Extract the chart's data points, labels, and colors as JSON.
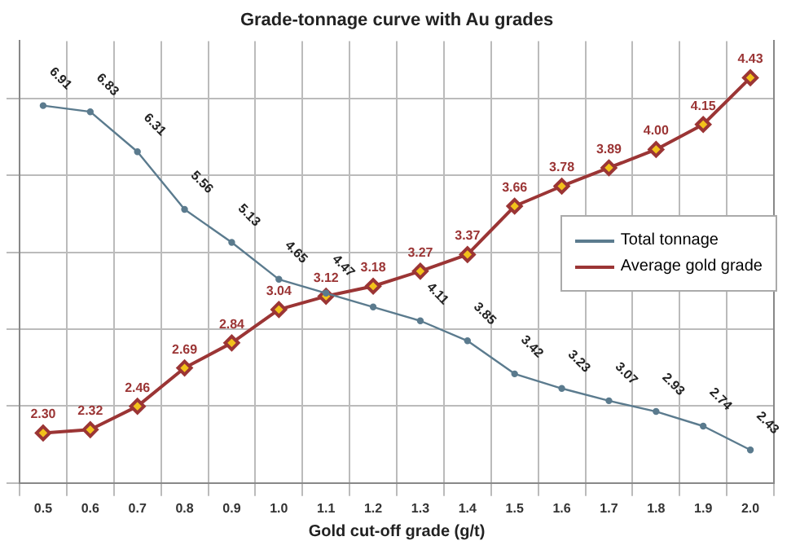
{
  "chart_data": {
    "type": "line",
    "title": "Grade-tonnage curve with Au grades",
    "xlabel": "Gold cut-off grade (g/t)",
    "categories": [
      "0.5",
      "0.6",
      "0.7",
      "0.8",
      "0.9",
      "1.0",
      "1.1",
      "1.2",
      "1.3",
      "1.4",
      "1.5",
      "1.6",
      "1.7",
      "1.8",
      "1.9",
      "2.0"
    ],
    "series": [
      {
        "name": "Total tonnage",
        "color": "#5b7b8e",
        "marker": "circle",
        "axis": "y",
        "values": [
          6.91,
          6.83,
          6.31,
          5.56,
          5.13,
          4.65,
          4.47,
          4.29,
          4.11,
          3.85,
          3.42,
          3.23,
          3.07,
          2.93,
          2.74,
          2.43
        ],
        "value_labels": [
          "6.91",
          "6.83",
          "6.31",
          "5.56",
          "5.13",
          "4.65",
          "4.47",
          null,
          "4.11",
          "3.85",
          "3.42",
          "3.23",
          "3.07",
          "2.93",
          "2.74",
          "2.43"
        ]
      },
      {
        "name": "Average gold grade",
        "color": "#9b3535",
        "marker": "diamond",
        "axis": "y2",
        "values": [
          2.3,
          2.32,
          2.46,
          2.69,
          2.84,
          3.04,
          3.12,
          3.18,
          3.27,
          3.37,
          3.66,
          3.78,
          3.89,
          4.0,
          4.15,
          4.43
        ],
        "value_labels": [
          "2.30",
          "2.32",
          "2.46",
          "2.69",
          "2.84",
          "3.04",
          "3.12",
          "3.18",
          "3.27",
          "3.37",
          "3.66",
          "3.78",
          "3.89",
          "4.00",
          "4.15",
          "4.43"
        ]
      }
    ],
    "ylim": [
      2,
      7.75
    ],
    "yticks": [
      {
        "value": 2,
        "label": null
      },
      {
        "value": 3,
        "label": null
      },
      {
        "value": 4,
        "label": null
      },
      {
        "value": 5,
        "label": null
      },
      {
        "value": 6,
        "label": null
      },
      {
        "value": 7,
        "label": null
      }
    ],
    "y2lim": [
      2,
      4.65
    ],
    "grid": true,
    "legend": "right",
    "tick_labels": "x"
  }
}
